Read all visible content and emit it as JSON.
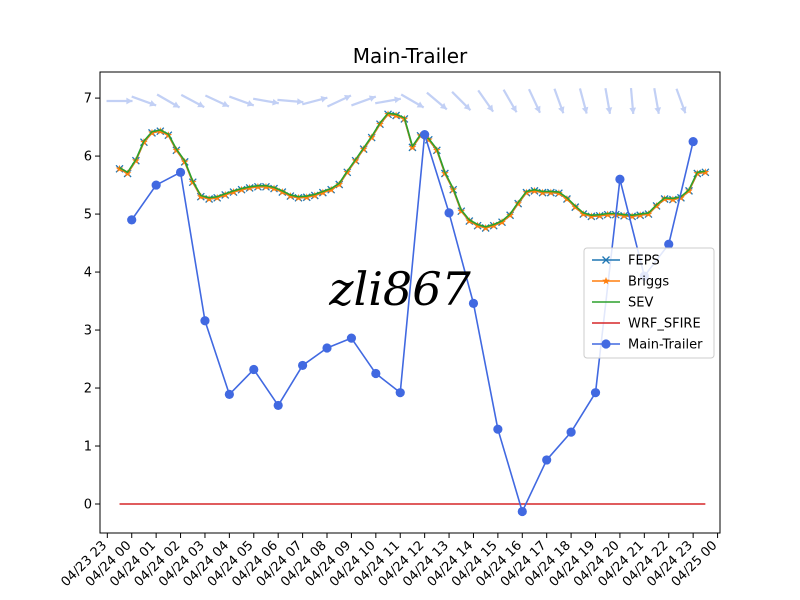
{
  "chart_data": {
    "type": "line",
    "title": "Main-Trailer",
    "watermark": "zli867",
    "xlabel": "",
    "ylabel": "",
    "ylim": [
      -0.5,
      7.45
    ],
    "xlim_hours": [
      -0.3,
      25.1
    ],
    "yticks": [
      0,
      1,
      2,
      3,
      4,
      5,
      6,
      7
    ],
    "xtick_labels": [
      "04/23 23",
      "04/24 00",
      "04/24 01",
      "04/24 02",
      "04/24 03",
      "04/24 04",
      "04/24 05",
      "04/24 06",
      "04/24 07",
      "04/24 08",
      "04/24 09",
      "04/24 10",
      "04/24 11",
      "04/24 12",
      "04/24 13",
      "04/24 14",
      "04/24 15",
      "04/24 16",
      "04/24 17",
      "04/24 18",
      "04/24 19",
      "04/24 20",
      "04/24 21",
      "04/24 22",
      "04/24 23",
      "04/25 00"
    ],
    "grid": false,
    "legend_position": "center-right",
    "colors": {
      "FEPS": "#1f77b4",
      "Briggs": "#ff7f0e",
      "SEV": "#2ca02c",
      "WRF_SFIRE": "#d62728",
      "Main-Trailer": "#4169e1",
      "wind": "#c2d0f5"
    },
    "series": [
      {
        "name": "FEPS",
        "marker": "x",
        "x": [
          0.5,
          0.83,
          1.17,
          1.5,
          1.83,
          2.17,
          2.5,
          2.83,
          3.17,
          3.5,
          3.83,
          4.17,
          4.5,
          4.83,
          5.17,
          5.5,
          5.83,
          6.17,
          6.5,
          6.83,
          7.17,
          7.5,
          7.83,
          8.17,
          8.5,
          8.83,
          9.17,
          9.5,
          9.83,
          10.17,
          10.5,
          10.83,
          11.17,
          11.5,
          11.83,
          12.17,
          12.5,
          12.83,
          13.17,
          13.5,
          13.83,
          14.17,
          14.5,
          14.83,
          15.17,
          15.5,
          15.83,
          16.17,
          16.5,
          16.83,
          17.17,
          17.5,
          17.83,
          18.17,
          18.5,
          18.83,
          19.17,
          19.5,
          19.83,
          20.17,
          20.5,
          20.83,
          21.17,
          21.5,
          21.83,
          22.17,
          22.5,
          22.83,
          23.17,
          23.5,
          23.83,
          24.17,
          24.5
        ],
        "values": [
          5.78,
          5.7,
          5.92,
          6.24,
          6.4,
          6.43,
          6.36,
          6.1,
          5.9,
          5.55,
          5.3,
          5.26,
          5.28,
          5.33,
          5.38,
          5.42,
          5.45,
          5.47,
          5.47,
          5.44,
          5.38,
          5.31,
          5.28,
          5.29,
          5.32,
          5.37,
          5.42,
          5.51,
          5.72,
          5.92,
          6.12,
          6.32,
          6.55,
          6.72,
          6.7,
          6.64,
          6.15,
          6.35,
          6.28,
          6.1,
          5.7,
          5.42,
          5.05,
          4.88,
          4.8,
          4.76,
          4.8,
          4.86,
          4.98,
          5.18,
          5.37,
          5.4,
          5.37,
          5.37,
          5.36,
          5.26,
          5.12,
          5.0,
          4.96,
          4.97,
          4.99,
          4.99,
          4.97,
          4.96,
          4.98,
          5.0,
          5.14,
          5.26,
          5.25,
          5.28,
          5.4,
          5.7,
          5.72
        ]
      },
      {
        "name": "Briggs",
        "marker": "*",
        "x": [
          0.5,
          0.83,
          1.17,
          1.5,
          1.83,
          2.17,
          2.5,
          2.83,
          3.17,
          3.5,
          3.83,
          4.17,
          4.5,
          4.83,
          5.17,
          5.5,
          5.83,
          6.17,
          6.5,
          6.83,
          7.17,
          7.5,
          7.83,
          8.17,
          8.5,
          8.83,
          9.17,
          9.5,
          9.83,
          10.17,
          10.5,
          10.83,
          11.17,
          11.5,
          11.83,
          12.17,
          12.5,
          12.83,
          13.17,
          13.5,
          13.83,
          14.17,
          14.5,
          14.83,
          15.17,
          15.5,
          15.83,
          16.17,
          16.5,
          16.83,
          17.17,
          17.5,
          17.83,
          18.17,
          18.5,
          18.83,
          19.17,
          19.5,
          19.83,
          20.17,
          20.5,
          20.83,
          21.17,
          21.5,
          21.83,
          22.17,
          22.5,
          22.83,
          23.17,
          23.5,
          23.83,
          24.17,
          24.5
        ],
        "values": [
          5.78,
          5.7,
          5.92,
          6.24,
          6.4,
          6.43,
          6.36,
          6.1,
          5.9,
          5.55,
          5.3,
          5.26,
          5.28,
          5.33,
          5.38,
          5.42,
          5.45,
          5.47,
          5.47,
          5.44,
          5.38,
          5.31,
          5.28,
          5.29,
          5.32,
          5.37,
          5.42,
          5.51,
          5.72,
          5.92,
          6.12,
          6.32,
          6.55,
          6.72,
          6.7,
          6.64,
          6.15,
          6.35,
          6.28,
          6.1,
          5.7,
          5.42,
          5.05,
          4.88,
          4.8,
          4.76,
          4.8,
          4.86,
          4.98,
          5.18,
          5.37,
          5.4,
          5.37,
          5.37,
          5.36,
          5.26,
          5.12,
          5.0,
          4.96,
          4.97,
          4.99,
          4.99,
          4.97,
          4.96,
          4.98,
          5.0,
          5.14,
          5.26,
          5.25,
          5.28,
          5.4,
          5.7,
          5.72
        ]
      },
      {
        "name": "SEV",
        "marker": "none",
        "x": [
          0.5,
          0.83,
          1.17,
          1.5,
          1.83,
          2.17,
          2.5,
          2.83,
          3.17,
          3.5,
          3.83,
          4.17,
          4.5,
          4.83,
          5.17,
          5.5,
          5.83,
          6.17,
          6.5,
          6.83,
          7.17,
          7.5,
          7.83,
          8.17,
          8.5,
          8.83,
          9.17,
          9.5,
          9.83,
          10.17,
          10.5,
          10.83,
          11.17,
          11.5,
          11.83,
          12.17,
          12.5,
          12.83,
          13.17,
          13.5,
          13.83,
          14.17,
          14.5,
          14.83,
          15.17,
          15.5,
          15.83,
          16.17,
          16.5,
          16.83,
          17.17,
          17.5,
          17.83,
          18.17,
          18.5,
          18.83,
          19.17,
          19.5,
          19.83,
          20.17,
          20.5,
          20.83,
          21.17,
          21.5,
          21.83,
          22.17,
          22.5,
          22.83,
          23.17,
          23.5,
          23.83,
          24.17,
          24.5
        ],
        "values": [
          5.8,
          5.72,
          5.94,
          6.26,
          6.42,
          6.45,
          6.38,
          6.12,
          5.92,
          5.57,
          5.32,
          5.28,
          5.3,
          5.35,
          5.4,
          5.44,
          5.47,
          5.49,
          5.49,
          5.46,
          5.4,
          5.33,
          5.3,
          5.31,
          5.34,
          5.39,
          5.44,
          5.53,
          5.74,
          5.94,
          6.14,
          6.34,
          6.57,
          6.74,
          6.72,
          6.66,
          6.17,
          6.37,
          6.3,
          6.12,
          5.72,
          5.44,
          5.07,
          4.9,
          4.82,
          4.78,
          4.82,
          4.88,
          5.0,
          5.2,
          5.39,
          5.42,
          5.39,
          5.39,
          5.38,
          5.28,
          5.14,
          5.02,
          4.98,
          4.99,
          5.01,
          5.01,
          4.99,
          4.98,
          5.0,
          5.02,
          5.16,
          5.28,
          5.27,
          5.3,
          5.42,
          5.72,
          5.74
        ]
      },
      {
        "name": "WRF_SFIRE",
        "marker": "none",
        "x": [
          0.5,
          24.5
        ],
        "values": [
          0.0,
          0.0
        ]
      },
      {
        "name": "Main-Trailer",
        "marker": "o",
        "x": [
          1,
          2,
          3,
          4,
          5,
          6,
          7,
          8,
          9,
          10,
          11,
          12,
          13,
          14,
          15,
          16,
          17,
          18,
          19,
          20,
          21,
          22,
          23,
          24
        ],
        "values": [
          4.9,
          5.5,
          5.72,
          3.16,
          1.89,
          2.32,
          1.7,
          2.39,
          2.69,
          2.86,
          2.25,
          1.92,
          6.37,
          5.02,
          3.46,
          1.29,
          -0.13,
          0.76,
          1.24,
          1.92,
          5.6,
          3.93,
          4.48,
          6.25
        ]
      }
    ],
    "wind_arrows": {
      "x": [
        0.5,
        1.5,
        2.5,
        3.5,
        4.5,
        5.5,
        6.5,
        7.5,
        8.5,
        9.5,
        10.5,
        11.5,
        12.5,
        13.5,
        14.5,
        15.5,
        16.5,
        17.5,
        18.5,
        19.5,
        20.5,
        21.5,
        22.5,
        23.5
      ],
      "angle_deg": [
        0,
        20,
        30,
        28,
        25,
        20,
        10,
        5,
        -15,
        -25,
        -20,
        -10,
        30,
        40,
        45,
        55,
        60,
        65,
        70,
        75,
        80,
        85,
        80,
        70
      ]
    }
  }
}
